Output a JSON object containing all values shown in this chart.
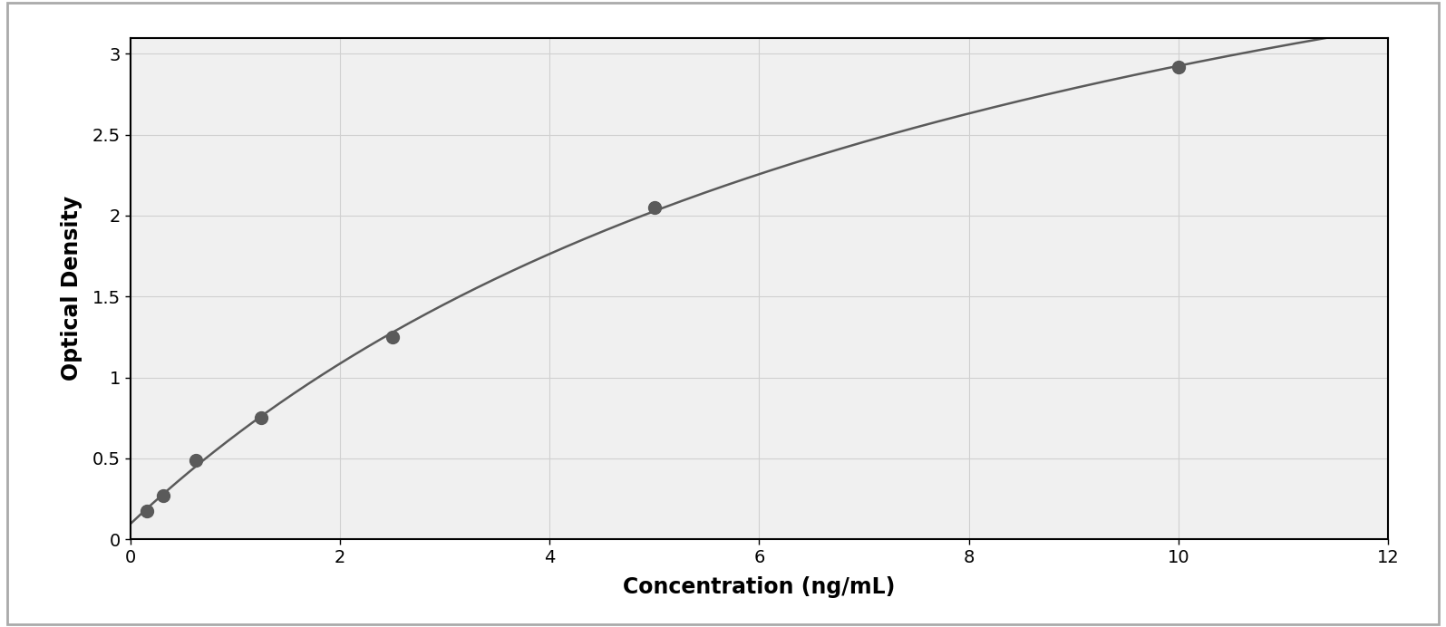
{
  "x_data": [
    0.156,
    0.313,
    0.625,
    1.25,
    2.5,
    5.0,
    10.0
  ],
  "y_data": [
    0.175,
    0.27,
    0.49,
    0.75,
    1.25,
    2.05,
    2.92
  ],
  "data_color": "#5a5a5a",
  "line_color": "#5a5a5a",
  "marker_size": 10,
  "line_width": 1.8,
  "xlabel": "Concentration (ng/mL)",
  "ylabel": "Optical Density",
  "xlim": [
    0,
    12
  ],
  "ylim": [
    0,
    3.1
  ],
  "xticks": [
    0,
    2,
    4,
    6,
    8,
    10,
    12
  ],
  "yticks": [
    0,
    0.5,
    1.0,
    1.5,
    2.0,
    2.5,
    3.0
  ],
  "xlabel_fontsize": 17,
  "ylabel_fontsize": 17,
  "tick_fontsize": 14,
  "grid_color": "#d0d0d0",
  "plot_bg_color": "#f0f0f0",
  "fig_bg_color": "#ffffff",
  "outer_border_color": "#aaaaaa",
  "spine_color": "#000000"
}
